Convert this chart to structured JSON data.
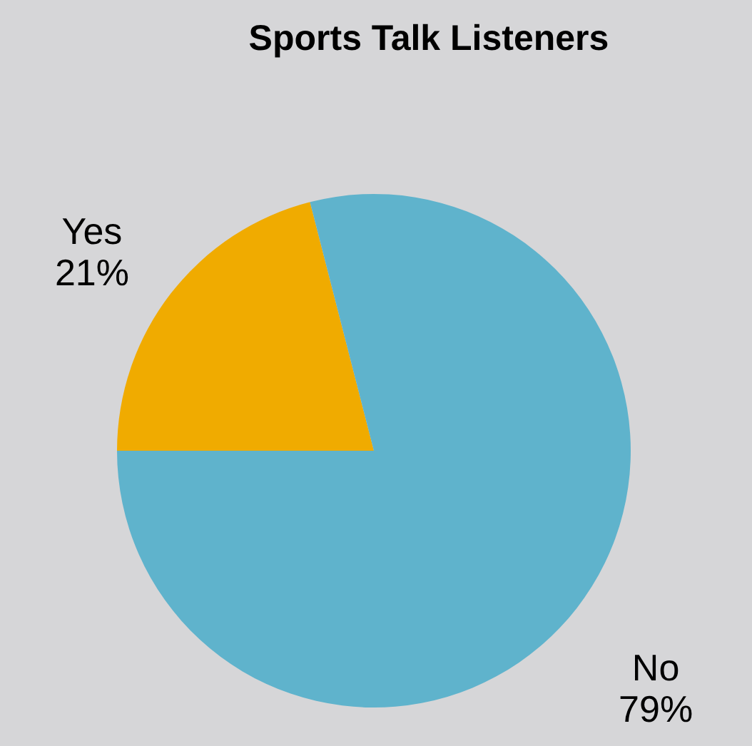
{
  "chart_data": {
    "type": "pie",
    "title": "Sports Talk Listeners",
    "categories": [
      "Yes",
      "No"
    ],
    "values": [
      21,
      79
    ],
    "value_labels": [
      "21%",
      "79%"
    ],
    "colors": [
      "#f0ab00",
      "#5fb3cc"
    ]
  }
}
